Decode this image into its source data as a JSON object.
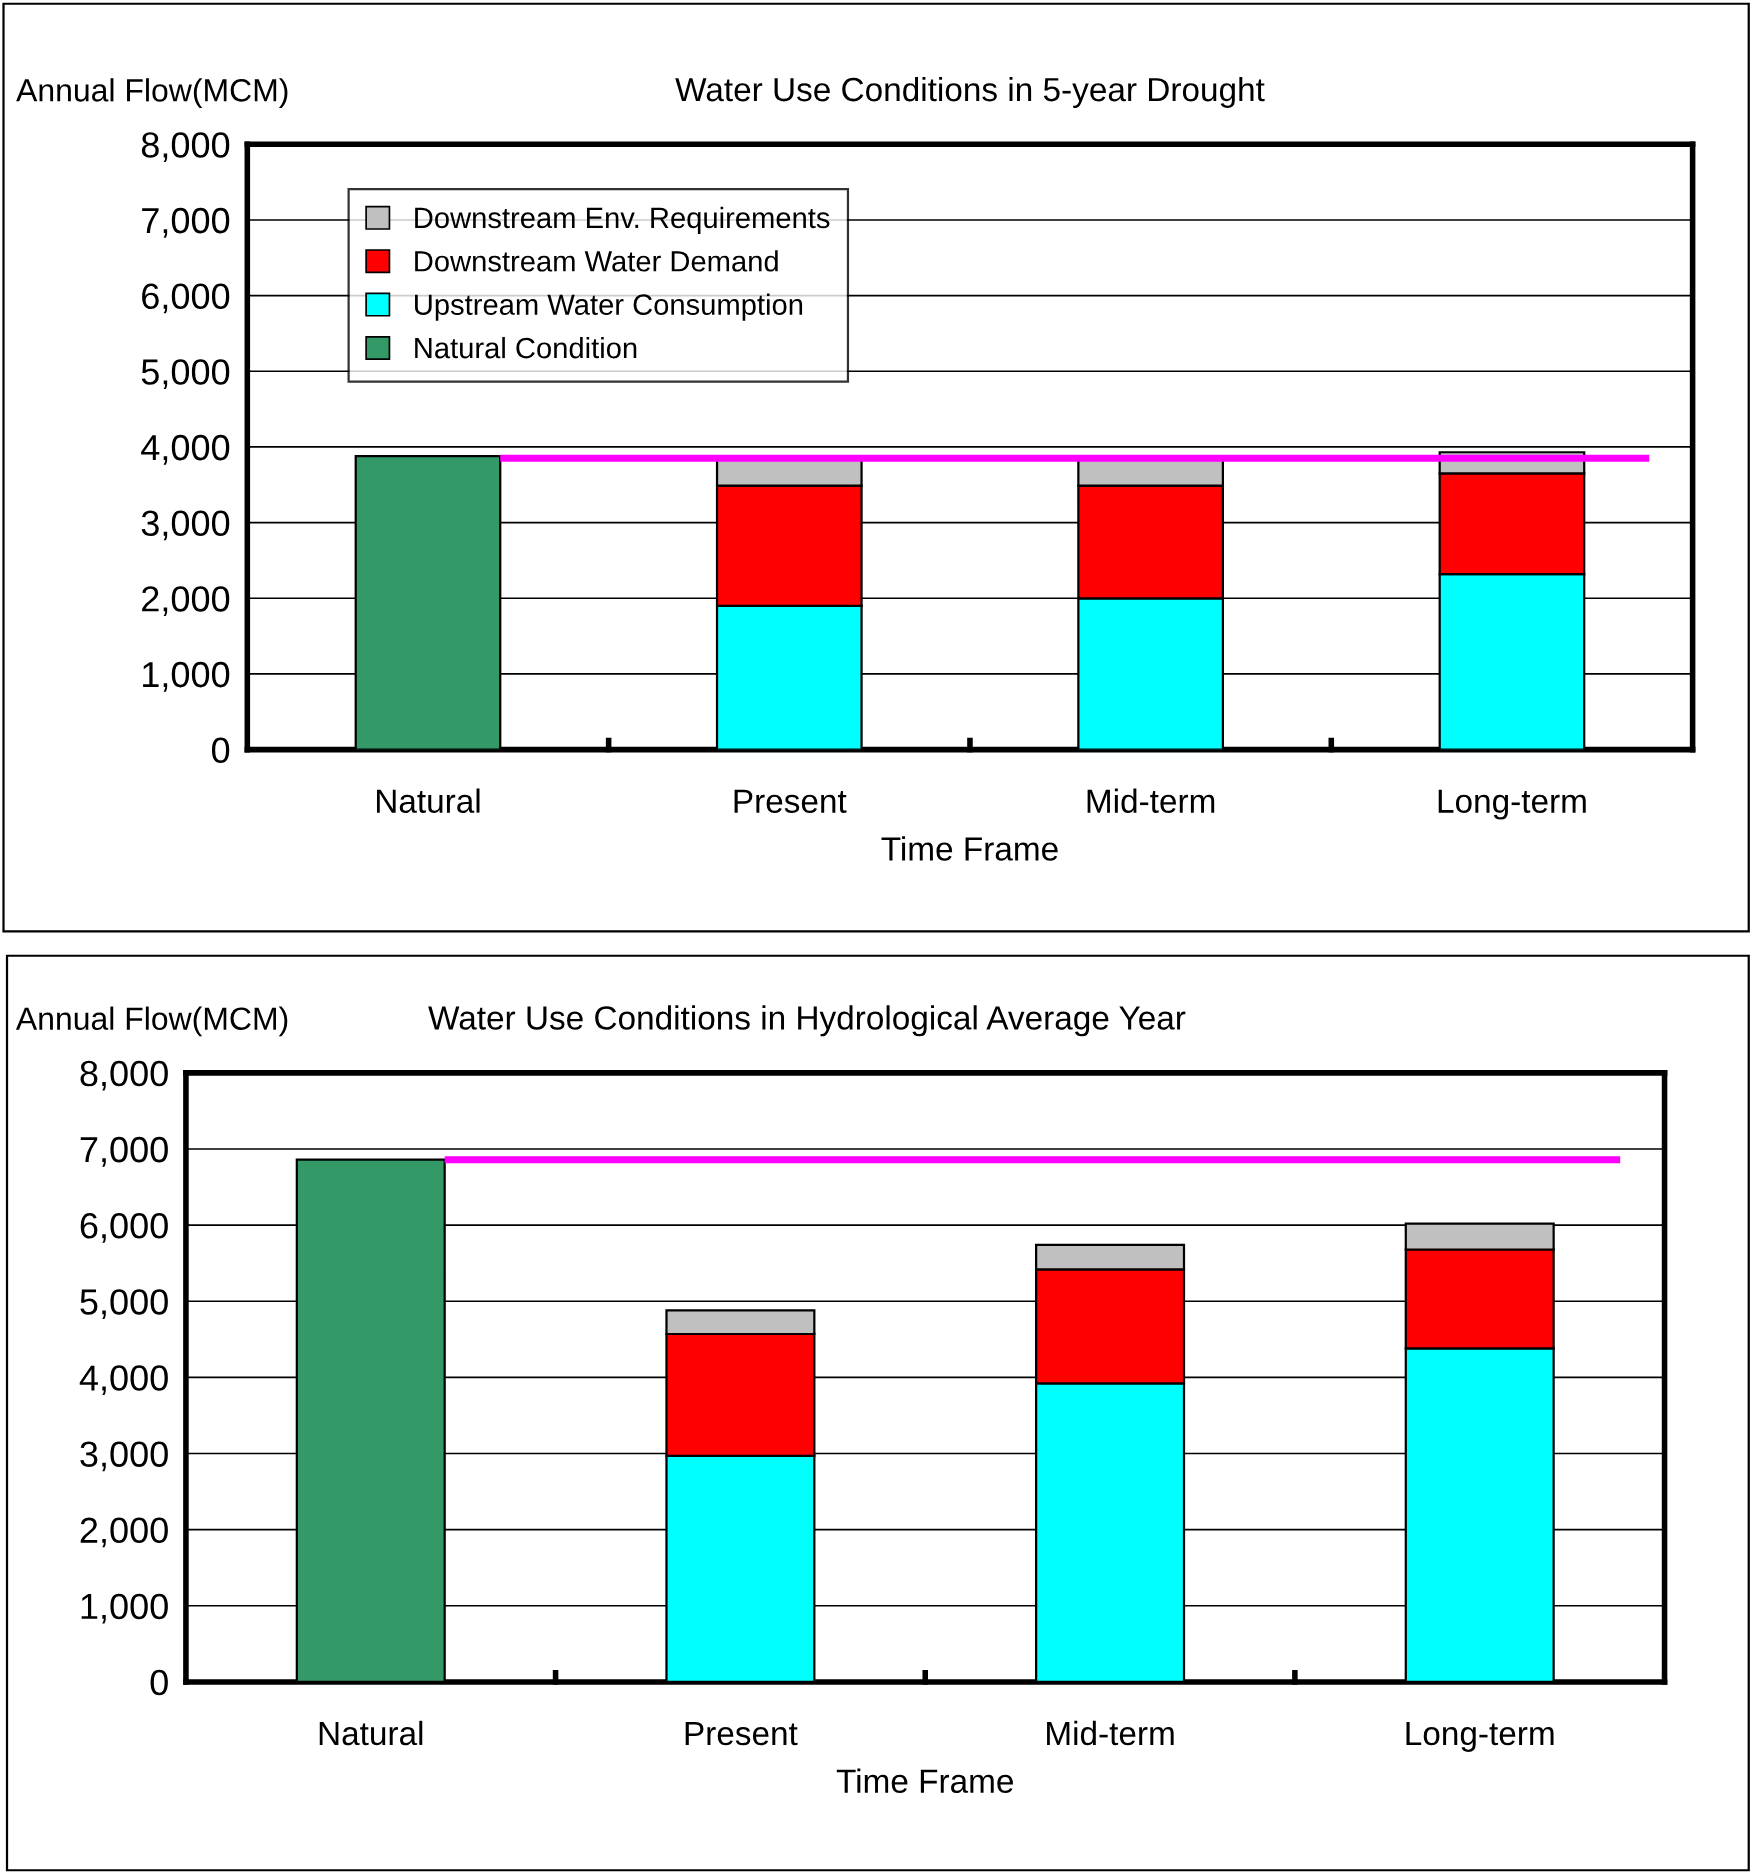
{
  "chart_data": [
    {
      "type": "bar",
      "title": "Water Use Conditions in 5-year Drought",
      "ylabel": "Annual Flow(MCM)",
      "xlabel": "Time Frame",
      "stacked": true,
      "categories": [
        "Natural",
        "Present",
        "Mid-term",
        "Long-term"
      ],
      "series": [
        {
          "name": "Natural Condition",
          "color": "#339966",
          "values": [
            3880,
            null,
            null,
            null
          ]
        },
        {
          "name": "Upstream Water Consumption",
          "color": "#00ffff",
          "values": [
            null,
            1900,
            2000,
            2320
          ]
        },
        {
          "name": "Downstream Water Demand",
          "color": "#ff0000",
          "values": [
            null,
            1590,
            1490,
            1330
          ]
        },
        {
          "name": "Downstream Env. Requirements",
          "color": "#c0c0c0",
          "values": [
            null,
            350,
            350,
            280
          ]
        }
      ],
      "ylim": [
        0,
        8000
      ],
      "yticks": [
        {
          "value": 0,
          "label": "0"
        },
        {
          "value": 1000,
          "label": "1,000"
        },
        {
          "value": 2000,
          "label": "2,000"
        },
        {
          "value": 3000,
          "label": "3,000"
        },
        {
          "value": 4000,
          "label": "4,000"
        },
        {
          "value": 5000,
          "label": "5,000"
        },
        {
          "value": 6000,
          "label": "6,000"
        },
        {
          "value": 7000,
          "label": "7,000"
        },
        {
          "value": 8000,
          "label": "8,000"
        }
      ],
      "ref_lines": [
        {
          "axis": "y",
          "value": 3850,
          "color": "#ff00ff"
        }
      ],
      "grid": "y",
      "legend": "top left"
    },
    {
      "type": "bar",
      "title": "Water Use Conditions in Hydrological Average Year",
      "ylabel": "Annual Flow(MCM)",
      "xlabel": "Time Frame",
      "stacked": true,
      "categories": [
        "Natural",
        "Present",
        "Mid-term",
        "Long-term"
      ],
      "series": [
        {
          "color": "#339966",
          "values": [
            6860,
            null,
            null,
            null
          ]
        },
        {
          "color": "#00ffff",
          "values": [
            null,
            2970,
            3920,
            4380
          ]
        },
        {
          "color": "#ff0000",
          "values": [
            null,
            1600,
            1500,
            1300
          ]
        },
        {
          "color": "#c0c0c0",
          "values": [
            null,
            310,
            320,
            340
          ]
        }
      ],
      "ylim": [
        0,
        8000
      ],
      "yticks": [
        {
          "value": 0,
          "label": "0"
        },
        {
          "value": 1000,
          "label": "1,000"
        },
        {
          "value": 2000,
          "label": "2,000"
        },
        {
          "value": 3000,
          "label": "3,000"
        },
        {
          "value": 4000,
          "label": "4,000"
        },
        {
          "value": 5000,
          "label": "5,000"
        },
        {
          "value": 6000,
          "label": "6,000"
        },
        {
          "value": 7000,
          "label": "7,000"
        },
        {
          "value": 8000,
          "label": "8,000"
        }
      ],
      "ref_lines": [
        {
          "axis": "y",
          "value": 6860,
          "color": "#ff00ff"
        }
      ],
      "grid": "y"
    }
  ]
}
